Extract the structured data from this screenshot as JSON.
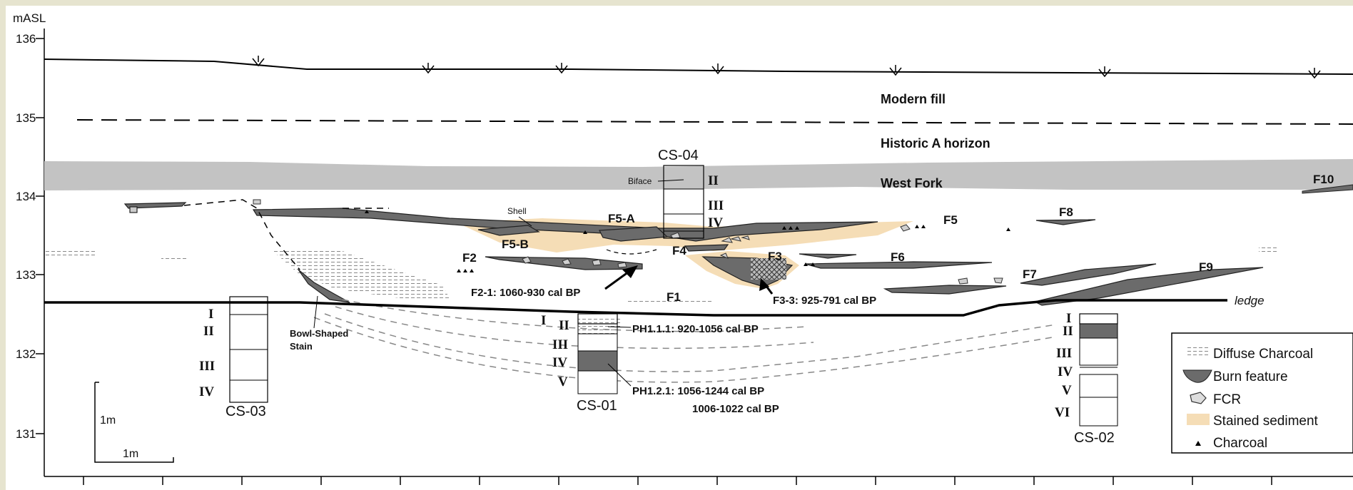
{
  "axis": {
    "unit_label": "mASL",
    "ticks": [
      "136",
      "135",
      "134",
      "133",
      "132",
      "131"
    ]
  },
  "horizons": {
    "modern_fill": "Modern fill",
    "historic_a": "Historic A horizon",
    "west_fork": "West Fork",
    "ledge": "ledge"
  },
  "features": {
    "f1": "F1",
    "f2": "F2",
    "f3": "F3",
    "f4": "F4",
    "f5": "F5",
    "f5a": "F5-A",
    "f5b": "F5-B",
    "f6": "F6",
    "f7": "F7",
    "f8": "F8",
    "f9": "F9",
    "f10": "F10"
  },
  "annotations": {
    "shell": "Shell",
    "biface": "Biface",
    "bowl_line1": "Bowl-Shaped",
    "bowl_line2": "Stain",
    "f2_date": "F2-1: 1060-930 cal BP",
    "f3_date": "F3-3: 925-791 cal BP",
    "ph111": "PH1.1.1:  920-1056 cal BP",
    "ph121": "PH1.2.1:  1056-1244 cal BP",
    "ph121b": "1006-1022 cal BP"
  },
  "columns": {
    "cs04": {
      "name": "CS-04",
      "units": [
        "II",
        "III",
        "IV"
      ]
    },
    "cs03": {
      "name": "CS-03",
      "units": [
        "I",
        "II",
        "III",
        "IV"
      ]
    },
    "cs01": {
      "name": "CS-01",
      "units": [
        "I",
        "II",
        "III",
        "IV",
        "V"
      ]
    },
    "cs02": {
      "name": "CS-02",
      "units": [
        "I",
        "II",
        "III",
        "IV",
        "V",
        "VI"
      ]
    }
  },
  "scale": {
    "vertical": "1m",
    "horizontal": "1m"
  },
  "legend": {
    "items": [
      {
        "label": "Diffuse Charcoal",
        "icon": "diffuse-charcoal-icon"
      },
      {
        "label": "Burn feature",
        "icon": "burn-feature-icon"
      },
      {
        "label": "FCR",
        "icon": "fcr-icon"
      },
      {
        "label": "Stained sediment",
        "icon": "stained-sediment-icon"
      },
      {
        "label": "Charcoal",
        "icon": "charcoal-icon"
      }
    ]
  },
  "colors": {
    "background": "#e6e4cf",
    "west_fork": "#c3c3c3",
    "burn": "#6b6b6b",
    "stain": "#f5ddb6"
  }
}
